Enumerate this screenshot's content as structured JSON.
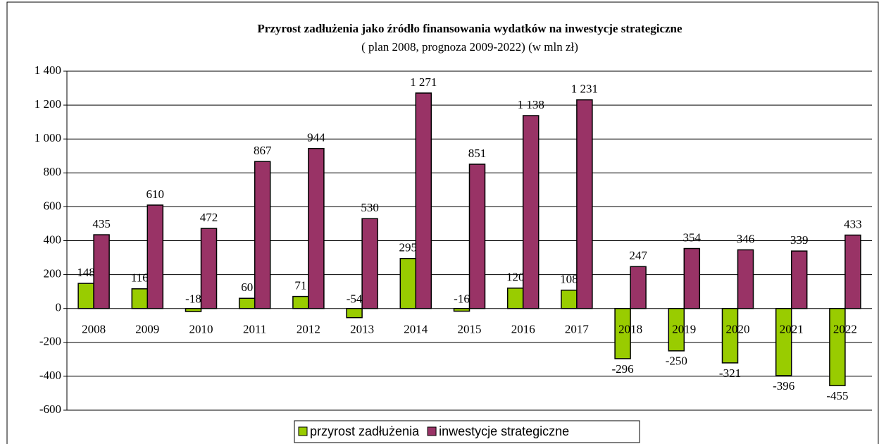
{
  "chart_data": {
    "type": "bar",
    "title": "Przyrost zadłużenia jako źródło finansowania wydatków na inwestycje strategiczne",
    "subtitle": "( plan 2008, prognoza 2009-2022) (w mln zł)",
    "categories": [
      "2008",
      "2009",
      "2010",
      "2011",
      "2012",
      "2013",
      "2014",
      "2015",
      "2016",
      "2017",
      "2018",
      "2019",
      "2020",
      "2021",
      "2022"
    ],
    "series": [
      {
        "name": "przyrost zadłużenia",
        "color": "#99cc00",
        "values": [
          148,
          116,
          -18,
          60,
          71,
          -54,
          295,
          -16,
          120,
          108,
          -296,
          -250,
          -321,
          -396,
          -455
        ]
      },
      {
        "name": "inwestycje strategiczne",
        "color": "#993366",
        "values": [
          435,
          610,
          472,
          867,
          944,
          530,
          1271,
          851,
          1138,
          1231,
          247,
          354,
          346,
          339,
          433
        ],
        "value_labels": [
          "435",
          "610",
          "472",
          "867",
          "944",
          "530",
          "1 271",
          "851",
          "1 138",
          "1 231",
          "247",
          "354",
          "346",
          "339",
          "433"
        ]
      }
    ],
    "ylim": [
      -600,
      1400
    ],
    "yticks": [
      -600,
      -400,
      -200,
      0,
      200,
      400,
      600,
      800,
      {
        "value": 1000,
        "label": "1 000"
      },
      {
        "value": 1200,
        "label": "1 200"
      },
      {
        "value": 1400,
        "label": "1 400"
      }
    ],
    "grid": true,
    "legend": "bottom"
  }
}
